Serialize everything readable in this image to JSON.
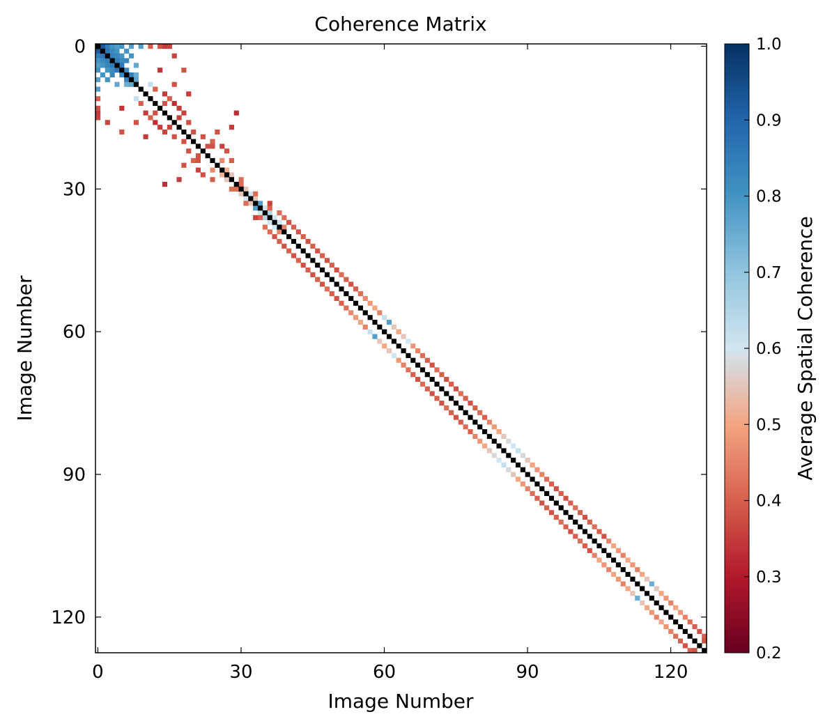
{
  "chart_data": {
    "type": "heatmap",
    "title": "Coherence Matrix",
    "xlabel": "Image Number",
    "ylabel": "Image Number",
    "n_images": 128,
    "x_range": [
      0,
      127
    ],
    "y_range": [
      0,
      127
    ],
    "x_ticks": [
      0,
      30,
      60,
      90,
      120
    ],
    "y_ticks": [
      0,
      30,
      60,
      90,
      120
    ],
    "y_inverted": true,
    "diagonal_value": 1.0,
    "colorbar": {
      "label": "Average Spatial Coherence",
      "vmin": 0.2,
      "vmax": 1.0,
      "ticks": [
        0.2,
        0.3,
        0.4,
        0.5,
        0.6,
        0.7,
        0.8,
        0.9,
        1.0
      ],
      "tick_labels": [
        "0.2",
        "0.3",
        "0.4",
        "0.5",
        "0.6",
        "0.7",
        "0.8",
        "0.9",
        "1.0"
      ],
      "colormap": "RdBu",
      "colors": [
        "#67001f",
        "#b2182b",
        "#d6604d",
        "#f4a582",
        "#d1e5f0",
        "#92c5de",
        "#4393c3",
        "#2166ac",
        "#053061"
      ]
    },
    "pairs": [
      [
        0,
        1,
        0.92
      ],
      [
        0,
        2,
        0.85
      ],
      [
        1,
        2,
        0.86
      ],
      [
        0,
        3,
        0.8
      ],
      [
        1,
        3,
        0.82
      ],
      [
        2,
        3,
        0.84
      ],
      [
        0,
        4,
        0.78
      ],
      [
        1,
        4,
        0.8
      ],
      [
        2,
        4,
        0.83
      ],
      [
        3,
        4,
        0.85
      ],
      [
        0,
        5,
        0.8
      ],
      [
        2,
        5,
        0.8
      ],
      [
        3,
        5,
        0.82
      ],
      [
        4,
        5,
        0.86
      ],
      [
        1,
        6,
        0.8
      ],
      [
        3,
        6,
        0.83
      ],
      [
        5,
        6,
        0.82
      ],
      [
        0,
        7,
        0.78
      ],
      [
        2,
        7,
        0.8
      ],
      [
        6,
        7,
        0.84
      ],
      [
        4,
        8,
        0.76
      ],
      [
        6,
        8,
        0.75
      ],
      [
        7,
        8,
        0.76
      ],
      [
        0,
        9,
        0.78
      ],
      [
        0,
        11,
        0.4
      ],
      [
        0,
        14,
        0.35
      ],
      [
        2,
        16,
        0.36
      ],
      [
        5,
        18,
        0.38
      ],
      [
        8,
        11,
        0.62
      ],
      [
        9,
        12,
        0.4
      ],
      [
        10,
        14,
        0.35
      ],
      [
        11,
        15,
        0.4
      ],
      [
        13,
        0,
        0.38
      ],
      [
        15,
        0,
        0.36
      ],
      [
        14,
        12,
        0.38
      ],
      [
        17,
        13,
        0.35
      ],
      [
        13,
        5,
        0.34
      ],
      [
        19,
        16,
        0.38
      ],
      [
        20,
        18,
        0.38
      ],
      [
        22,
        19,
        0.38
      ],
      [
        17,
        15,
        0.36
      ],
      [
        12,
        16,
        0.33
      ],
      [
        19,
        10,
        0.35
      ],
      [
        8,
        16,
        0.38
      ],
      [
        14,
        18,
        0.36
      ],
      [
        23,
        21,
        0.38
      ],
      [
        21,
        24,
        0.38
      ],
      [
        24,
        20,
        0.4
      ],
      [
        25,
        18,
        0.38
      ],
      [
        26,
        21,
        0.36
      ],
      [
        27,
        22,
        0.38
      ],
      [
        28,
        17,
        0.35
      ],
      [
        29,
        14,
        0.33
      ],
      [
        28,
        24,
        0.4
      ],
      [
        26,
        24,
        0.46
      ],
      [
        27,
        26,
        0.52
      ],
      [
        28,
        27,
        0.55
      ],
      [
        30,
        28,
        0.42
      ],
      [
        29,
        30,
        0.42
      ],
      [
        30,
        31,
        0.55
      ],
      [
        31,
        32,
        0.6
      ],
      [
        32,
        33,
        0.55
      ],
      [
        33,
        34,
        0.78
      ],
      [
        34,
        35,
        0.6
      ],
      [
        35,
        36,
        0.65
      ],
      [
        36,
        37,
        0.6
      ],
      [
        37,
        38,
        0.6
      ],
      [
        38,
        39,
        0.45
      ],
      [
        31,
        33,
        0.42
      ],
      [
        34,
        36,
        0.4
      ],
      [
        35,
        38,
        0.42
      ],
      [
        36,
        39,
        0.42
      ],
      [
        33,
        36,
        0.36
      ],
      [
        37,
        40,
        0.38
      ],
      [
        38,
        41,
        0.4
      ],
      [
        39,
        42,
        0.38
      ],
      [
        40,
        43,
        0.4
      ],
      [
        41,
        44,
        0.38
      ],
      [
        42,
        45,
        0.4
      ],
      [
        43,
        46,
        0.38
      ],
      [
        44,
        47,
        0.4
      ],
      [
        45,
        48,
        0.38
      ],
      [
        46,
        49,
        0.4
      ],
      [
        47,
        50,
        0.38
      ],
      [
        48,
        51,
        0.42
      ],
      [
        49,
        52,
        0.4
      ],
      [
        50,
        53,
        0.38
      ],
      [
        51,
        54,
        0.4
      ],
      [
        52,
        55,
        0.42
      ],
      [
        53,
        56,
        0.46
      ],
      [
        54,
        57,
        0.48
      ],
      [
        55,
        58,
        0.5
      ],
      [
        56,
        59,
        0.45
      ],
      [
        57,
        60,
        0.62
      ],
      [
        58,
        61,
        0.78
      ],
      [
        59,
        62,
        0.55
      ],
      [
        60,
        63,
        0.5
      ],
      [
        61,
        64,
        0.55
      ],
      [
        62,
        65,
        0.6
      ],
      [
        63,
        66,
        0.48
      ],
      [
        64,
        67,
        0.45
      ],
      [
        65,
        68,
        0.42
      ],
      [
        66,
        69,
        0.4
      ],
      [
        67,
        70,
        0.38
      ],
      [
        68,
        71,
        0.42
      ],
      [
        69,
        72,
        0.4
      ],
      [
        70,
        73,
        0.38
      ],
      [
        71,
        74,
        0.4
      ],
      [
        72,
        75,
        0.38
      ],
      [
        73,
        76,
        0.42
      ],
      [
        74,
        77,
        0.4
      ],
      [
        75,
        78,
        0.38
      ],
      [
        76,
        79,
        0.4
      ],
      [
        77,
        80,
        0.42
      ],
      [
        78,
        81,
        0.4
      ],
      [
        79,
        82,
        0.45
      ],
      [
        80,
        83,
        0.48
      ],
      [
        81,
        84,
        0.5
      ],
      [
        82,
        85,
        0.55
      ],
      [
        83,
        86,
        0.58
      ],
      [
        84,
        87,
        0.6
      ],
      [
        85,
        88,
        0.62
      ],
      [
        86,
        89,
        0.58
      ],
      [
        87,
        90,
        0.55
      ],
      [
        88,
        91,
        0.5
      ],
      [
        89,
        92,
        0.48
      ],
      [
        90,
        93,
        0.45
      ],
      [
        91,
        94,
        0.42
      ],
      [
        92,
        95,
        0.4
      ],
      [
        93,
        96,
        0.38
      ],
      [
        94,
        97,
        0.4
      ],
      [
        95,
        98,
        0.38
      ],
      [
        96,
        99,
        0.4
      ],
      [
        97,
        100,
        0.42
      ],
      [
        98,
        101,
        0.4
      ],
      [
        99,
        102,
        0.38
      ],
      [
        100,
        103,
        0.4
      ],
      [
        101,
        104,
        0.42
      ],
      [
        102,
        105,
        0.4
      ],
      [
        103,
        106,
        0.38
      ],
      [
        104,
        107,
        0.45
      ],
      [
        105,
        108,
        0.5
      ],
      [
        106,
        109,
        0.48
      ],
      [
        107,
        110,
        0.45
      ],
      [
        108,
        111,
        0.5
      ],
      [
        109,
        112,
        0.48
      ],
      [
        110,
        113,
        0.45
      ],
      [
        111,
        114,
        0.5
      ],
      [
        112,
        115,
        0.55
      ],
      [
        113,
        116,
        0.75
      ],
      [
        114,
        117,
        0.55
      ],
      [
        115,
        118,
        0.5
      ],
      [
        116,
        119,
        0.48
      ],
      [
        117,
        120,
        0.45
      ],
      [
        118,
        121,
        0.5
      ],
      [
        119,
        122,
        0.48
      ],
      [
        120,
        123,
        0.45
      ],
      [
        121,
        124,
        0.42
      ],
      [
        122,
        125,
        0.4
      ],
      [
        123,
        126,
        0.38
      ],
      [
        124,
        127,
        0.4
      ],
      [
        125,
        127,
        0.38
      ]
    ]
  }
}
